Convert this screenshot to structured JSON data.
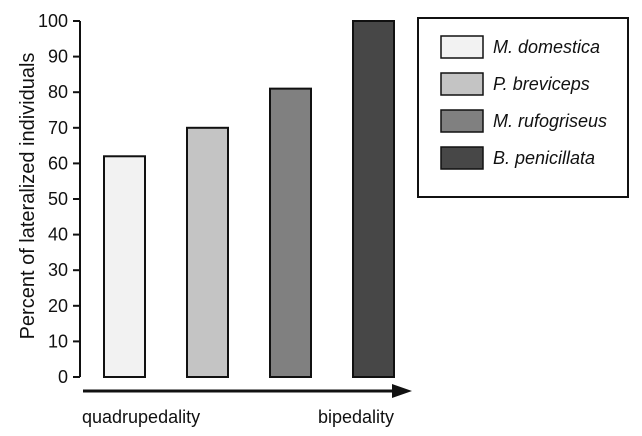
{
  "chart_data": {
    "type": "bar",
    "categories": [
      "M. domestica",
      "P. breviceps",
      "M. rufogriseus",
      "B. penicillata"
    ],
    "values": [
      62,
      70,
      81,
      100
    ],
    "colors": [
      "#f2f2f2",
      "#c4c4c4",
      "#808080",
      "#474747"
    ],
    "ylabel": "Percent of lateralized individuals",
    "xlabel": "",
    "ylim": [
      0,
      100
    ],
    "yticks": [
      0,
      10,
      20,
      30,
      40,
      50,
      60,
      70,
      80,
      90,
      100
    ],
    "grid": false,
    "legend": {
      "placement": "top-right",
      "entries": [
        "M. domestica",
        "P. breviceps",
        "M. rufogriseus",
        "B. penicillata"
      ]
    },
    "annotations": {
      "arrow_start_label": "quadrupedality",
      "arrow_end_label": "bipedality"
    }
  }
}
